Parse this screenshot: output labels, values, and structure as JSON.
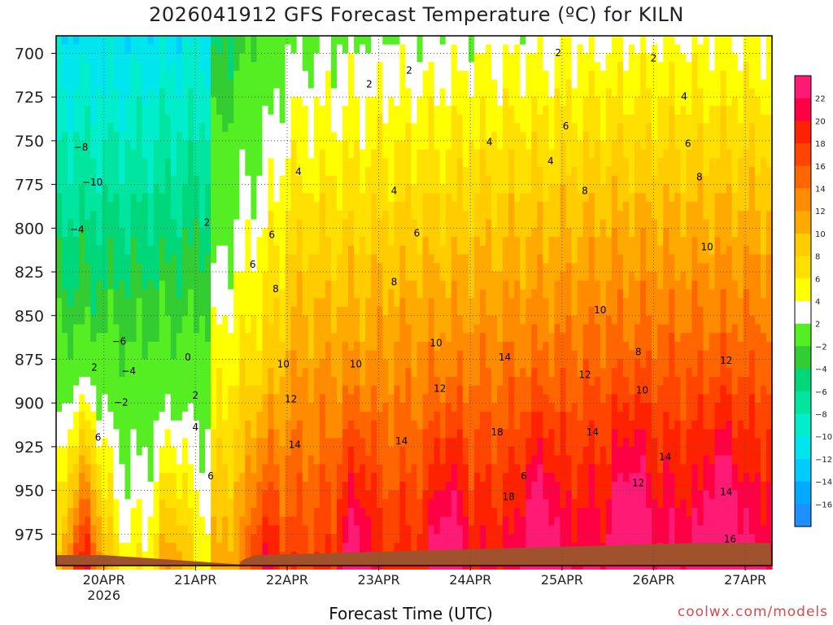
{
  "chart_data": {
    "type": "heatmap",
    "title": "2026041912 GFS Forecast Temperature (ºC) for KILN",
    "xlabel": "Forecast Time (UTC)",
    "credit": "coolwx.com/models",
    "x_range_hours": [
      -12.5,
      175
    ],
    "y_range_hpa": [
      690,
      993
    ],
    "x_ticks": [
      {
        "label": "20APR",
        "hour": 0,
        "sub": "2026"
      },
      {
        "label": "21APR",
        "hour": 24,
        "sub": ""
      },
      {
        "label": "22APR",
        "hour": 48,
        "sub": ""
      },
      {
        "label": "23APR",
        "hour": 72,
        "sub": ""
      },
      {
        "label": "24APR",
        "hour": 96,
        "sub": ""
      },
      {
        "label": "25APR",
        "hour": 120,
        "sub": ""
      },
      {
        "label": "26APR",
        "hour": 144,
        "sub": ""
      },
      {
        "label": "27APR",
        "hour": 168,
        "sub": ""
      }
    ],
    "y_ticks": [
      700,
      725,
      750,
      775,
      800,
      825,
      850,
      875,
      900,
      925,
      950,
      975
    ],
    "colorbar": {
      "labels": [
        "22",
        "20",
        "18",
        "16",
        "14",
        "12",
        "10",
        "8",
        "6",
        "4",
        "2",
        "−2",
        "−4",
        "−6",
        "−8",
        "−10",
        "−12",
        "−14",
        "−16"
      ],
      "levels": [
        -18,
        -16,
        -14,
        -12,
        -10,
        -8,
        -6,
        -4,
        -2,
        2,
        4,
        6,
        8,
        10,
        12,
        14,
        16,
        18,
        20,
        22,
        24
      ],
      "colors": [
        "#1e90ff",
        "#00aaff",
        "#00ccff",
        "#00e5ee",
        "#00eecc",
        "#00e6a0",
        "#00d67a",
        "#33cc33",
        "#55ee22",
        "#ffffff",
        "#ffff00",
        "#ffe000",
        "#ffcc00",
        "#ffaa00",
        "#ff8c00",
        "#ff6600",
        "#ff4500",
        "#ff2200",
        "#ff0044",
        "#ff1a75"
      ]
    },
    "contour_labels": [
      {
        "text": "2",
        "hour": 69.5,
        "p": 718
      },
      {
        "text": "2",
        "hour": 80,
        "p": 710
      },
      {
        "text": "2",
        "hour": 119,
        "p": 700
      },
      {
        "text": "2",
        "hour": 144,
        "p": 703
      },
      {
        "text": "2",
        "hour": 27,
        "p": 797
      },
      {
        "text": "2",
        "hour": -2.5,
        "p": 880
      },
      {
        "text": "−2",
        "hour": 4.5,
        "p": 900
      },
      {
        "text": "2",
        "hour": 24,
        "p": 896
      },
      {
        "text": "4",
        "hour": 24,
        "p": 914
      },
      {
        "text": "4",
        "hour": 51,
        "p": 768
      },
      {
        "text": "4",
        "hour": 76,
        "p": 779
      },
      {
        "text": "4",
        "hour": 117,
        "p": 762
      },
      {
        "text": "4",
        "hour": 101,
        "p": 751
      },
      {
        "text": "4",
        "hour": 152,
        "p": 725
      },
      {
        "text": "6",
        "hour": 28,
        "p": 942
      },
      {
        "text": "6",
        "hour": 39,
        "p": 821
      },
      {
        "text": "6",
        "hour": 44,
        "p": 804
      },
      {
        "text": "6",
        "hour": 82,
        "p": 803
      },
      {
        "text": "6",
        "hour": 121,
        "p": 742
      },
      {
        "text": "6",
        "hour": 153,
        "p": 752
      },
      {
        "text": "6",
        "hour": -1.5,
        "p": 920
      },
      {
        "text": "6",
        "hour": 110,
        "p": 942
      },
      {
        "text": "8",
        "hour": 45,
        "p": 835
      },
      {
        "text": "8",
        "hour": 76,
        "p": 831
      },
      {
        "text": "8",
        "hour": 126,
        "p": 779
      },
      {
        "text": "8",
        "hour": 156,
        "p": 771
      },
      {
        "text": "8",
        "hour": 140,
        "p": 871
      },
      {
        "text": "10",
        "hour": 47,
        "p": 878
      },
      {
        "text": "10",
        "hour": 66,
        "p": 878
      },
      {
        "text": "10",
        "hour": 87,
        "p": 866
      },
      {
        "text": "10",
        "hour": 130,
        "p": 847
      },
      {
        "text": "10",
        "hour": 158,
        "p": 811
      },
      {
        "text": "10",
        "hour": 141,
        "p": 893
      },
      {
        "text": "12",
        "hour": 49,
        "p": 898
      },
      {
        "text": "12",
        "hour": 88,
        "p": 892
      },
      {
        "text": "12",
        "hour": 126,
        "p": 884
      },
      {
        "text": "12",
        "hour": 163,
        "p": 876
      },
      {
        "text": "12",
        "hour": 140,
        "p": 946
      },
      {
        "text": "14",
        "hour": 50,
        "p": 924
      },
      {
        "text": "14",
        "hour": 78,
        "p": 922
      },
      {
        "text": "14",
        "hour": 105,
        "p": 874
      },
      {
        "text": "14",
        "hour": 128,
        "p": 917
      },
      {
        "text": "14",
        "hour": 147,
        "p": 931
      },
      {
        "text": "14",
        "hour": 163,
        "p": 951
      },
      {
        "text": "16",
        "hour": 164,
        "p": 978
      },
      {
        "text": "18",
        "hour": 103,
        "p": 917
      },
      {
        "text": "18",
        "hour": 106,
        "p": 954
      },
      {
        "text": "−8",
        "hour": -6,
        "p": 754
      },
      {
        "text": "−10",
        "hour": -3,
        "p": 774
      },
      {
        "text": "−4",
        "hour": -7,
        "p": 801
      },
      {
        "text": "−6",
        "hour": 4,
        "p": 865
      },
      {
        "text": "−4",
        "hour": 6.5,
        "p": 882
      },
      {
        "text": "0",
        "hour": 22,
        "p": 874
      }
    ]
  }
}
